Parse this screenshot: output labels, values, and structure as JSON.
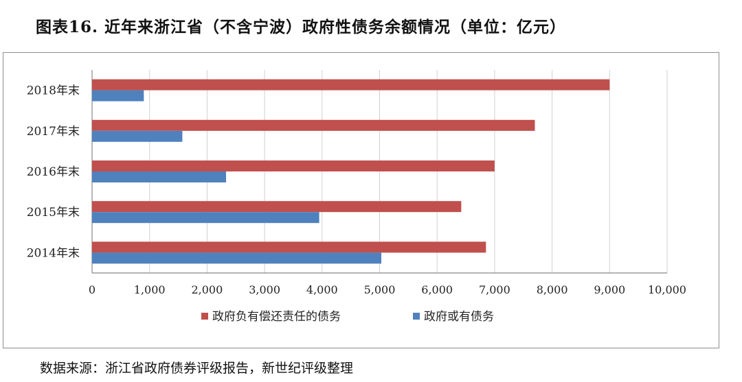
{
  "title": "图表16. 近年来浙江省（不含宁波）政府性债务余额情况（单位：亿元）",
  "source": "数据来源：浙江省政府债券评级报告，新世纪评级整理",
  "chart_data": {
    "type": "bar",
    "orientation": "horizontal",
    "categories": [
      "2014年末",
      "2015年末",
      "2016年末",
      "2017年末",
      "2018年末"
    ],
    "series": [
      {
        "name": "政府负有偿还责任的债务",
        "color": "#C0504D",
        "values": [
          6850,
          6420,
          7000,
          7700,
          9000
        ]
      },
      {
        "name": "政府或有债务",
        "color": "#4F81BD",
        "values": [
          5030,
          3950,
          2330,
          1570,
          900
        ]
      }
    ],
    "xlim": [
      0,
      10000
    ],
    "ticks": [
      "0",
      "1,000",
      "2,000",
      "3,000",
      "4,000",
      "5,000",
      "6,000",
      "7,000",
      "8,000",
      "9,000",
      "10,000"
    ],
    "grid": "vertical",
    "legend": "bottom"
  }
}
